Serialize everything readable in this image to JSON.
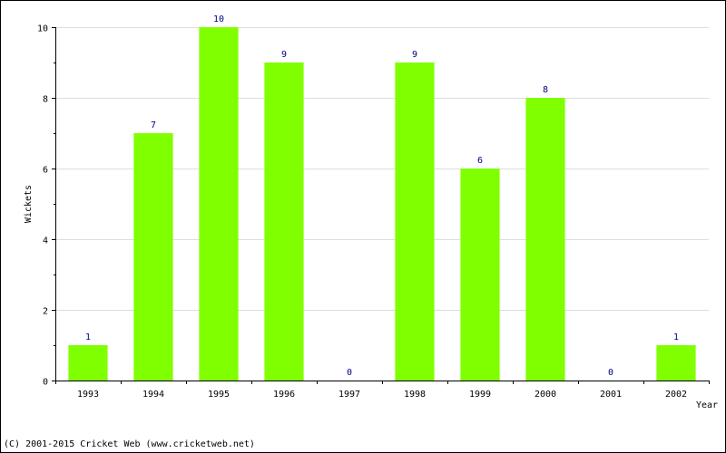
{
  "chart_data": {
    "type": "bar",
    "categories": [
      "1993",
      "1994",
      "1995",
      "1996",
      "1997",
      "1998",
      "1999",
      "2000",
      "2001",
      "2002"
    ],
    "values": [
      1,
      7,
      10,
      9,
      0,
      9,
      6,
      8,
      0,
      1
    ],
    "xlabel": "Year",
    "ylabel": "Wickets",
    "ylim": [
      0,
      10
    ],
    "yticks": [
      0,
      2,
      4,
      6,
      8,
      10
    ],
    "grid": true,
    "bar_color": "#80ff00",
    "value_label_color": "#000080",
    "gridline_color": "#dddddd"
  },
  "footer": {
    "copyright": "(C) 2001-2015 Cricket Web (www.cricketweb.net)"
  }
}
